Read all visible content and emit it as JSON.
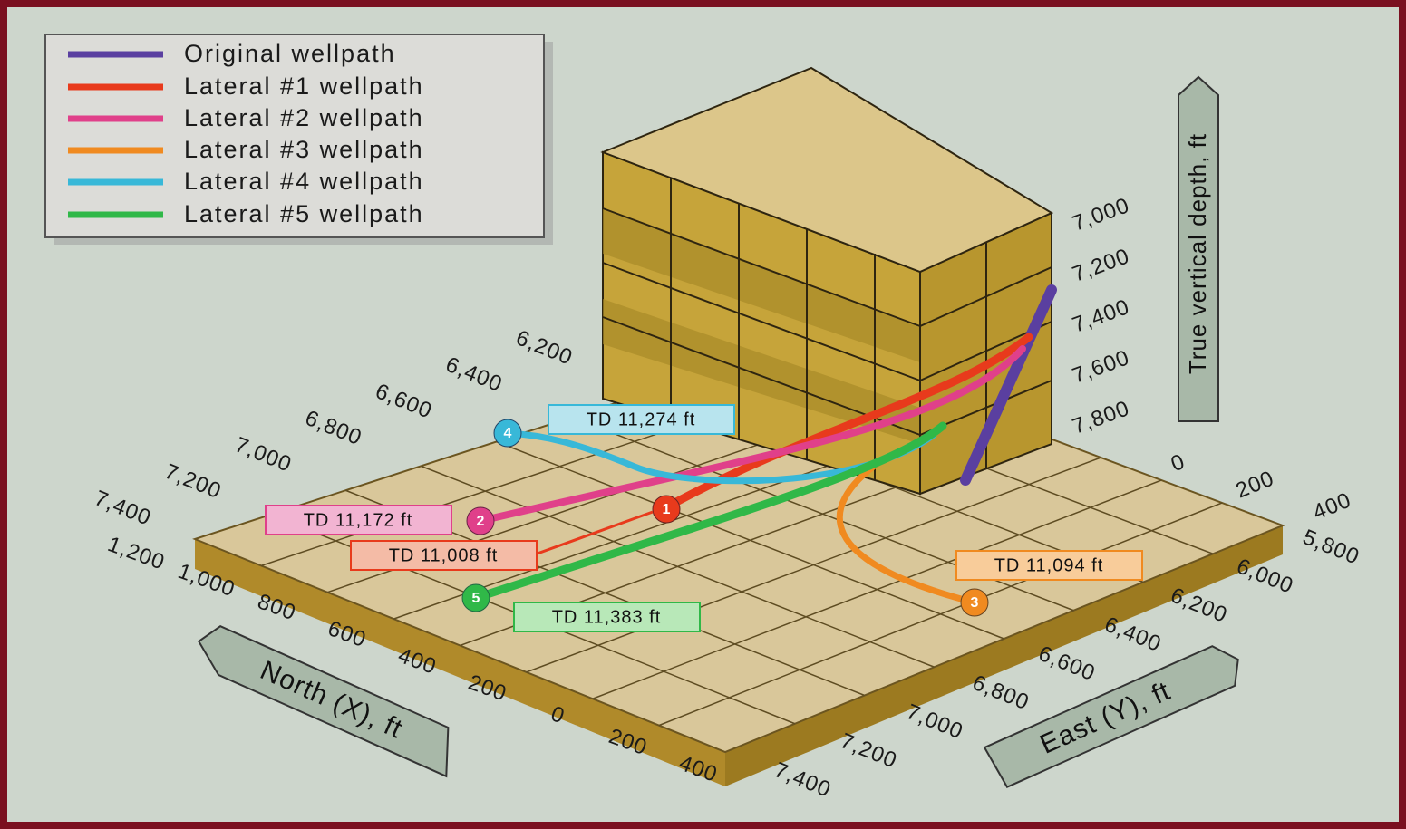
{
  "legend": {
    "items": [
      "Original wellpath",
      "Lateral #1 wellpath",
      "Lateral #2 wellpath",
      "Lateral #3 wellpath",
      "Lateral #4 wellpath",
      "Lateral #5 wellpath"
    ]
  },
  "axes": {
    "north": {
      "title": "North (X), ft",
      "ticks": [
        "1,200",
        "1,000",
        "800",
        "600",
        "400",
        "200",
        "0",
        "200",
        "400"
      ]
    },
    "east": {
      "title": "East (Y), ft",
      "ticks": [
        "5,800",
        "6,000",
        "6,200",
        "6,400",
        "6,600",
        "6,800",
        "7,000",
        "7,200",
        "7,400"
      ]
    },
    "left": {
      "ticks": [
        "6,200",
        "6,400",
        "6,600",
        "6,800",
        "7,000",
        "7,200",
        "7,400"
      ]
    },
    "back": {
      "ticks": [
        "0",
        "200",
        "400"
      ]
    },
    "depth": {
      "title": "True vertical depth, ft",
      "ticks": [
        "7,000",
        "7,200",
        "7,400",
        "7,600",
        "7,800"
      ]
    }
  },
  "callouts": [
    {
      "text": "TD 11,274 ft",
      "marker": "4"
    },
    {
      "text": "TD 11,172 ft",
      "marker": "2"
    },
    {
      "text": "TD 11,008 ft",
      "marker": "1"
    },
    {
      "text": "TD 11,383 ft",
      "marker": "5"
    },
    {
      "text": "TD 11,094 ft",
      "marker": "3"
    }
  ]
}
